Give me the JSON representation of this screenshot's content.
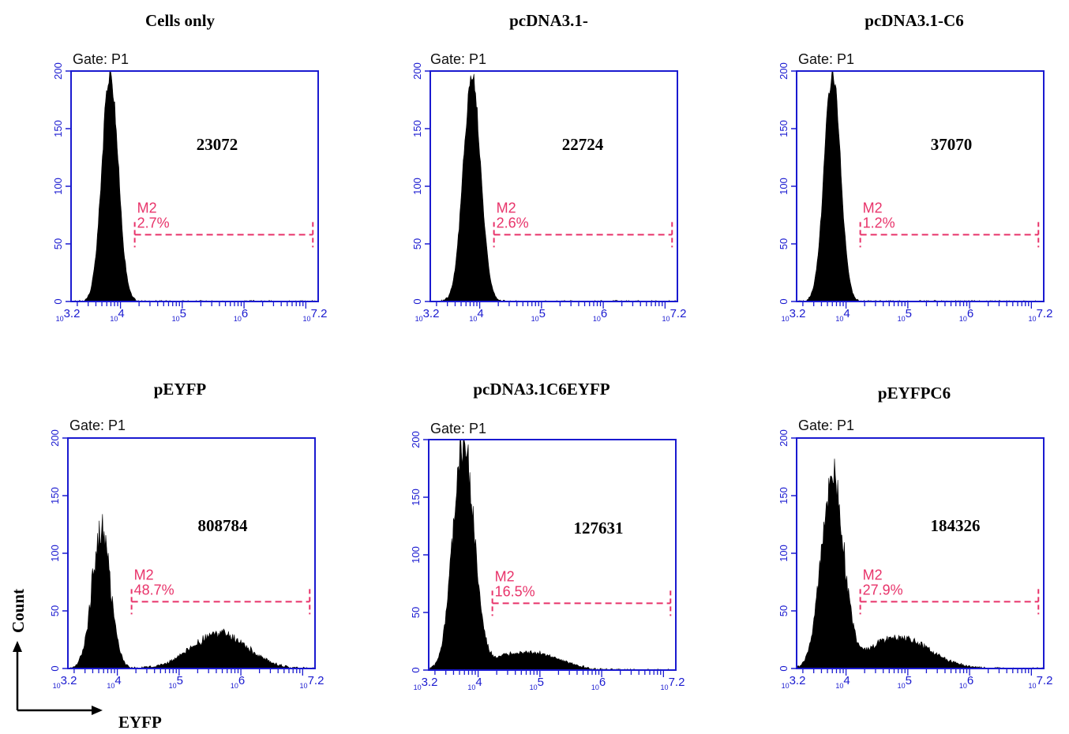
{
  "figure": {
    "y_axis_label": "Count",
    "x_axis_label": "EYFP"
  },
  "colors": {
    "frame": "#1a1ad0",
    "marker": "#e8336a",
    "histogram": "#000000"
  },
  "chart_data": [
    {
      "type": "area",
      "title": "Cells only",
      "gate_label": "Gate: P1",
      "value_label": "23072",
      "marker": {
        "name": "M2",
        "percent": "2.7%",
        "x_start": 17000,
        "x_end": 13000000,
        "y_level": 58
      },
      "x_scale": "log",
      "xlim": [
        1585,
        15850000
      ],
      "ylim": [
        0,
        200
      ],
      "y_ticks": [
        "0",
        "50",
        "100",
        "150",
        "200"
      ],
      "x_ticks": [
        {
          "base": "10",
          "exp": "3.2"
        },
        {
          "base": "10",
          "exp": "4"
        },
        {
          "base": "10",
          "exp": "5"
        },
        {
          "base": "10",
          "exp": "6"
        },
        {
          "base": "10",
          "exp": "7.2"
        }
      ],
      "series": [
        {
          "peaks": [
            {
              "x": 6800,
              "height": 200,
              "width": 0.13
            }
          ],
          "noise": 0.05
        }
      ]
    },
    {
      "type": "area",
      "title": "pcDNA3.1-",
      "gate_label": "Gate: P1",
      "value_label": "22724",
      "marker": {
        "name": "M2",
        "percent": "2.6%",
        "x_start": 17000,
        "x_end": 13000000,
        "y_level": 58
      },
      "x_scale": "log",
      "xlim": [
        1585,
        15850000
      ],
      "ylim": [
        0,
        200
      ],
      "y_ticks": [
        "0",
        "50",
        "100",
        "150",
        "200"
      ],
      "x_ticks": [
        {
          "base": "10",
          "exp": "3.2"
        },
        {
          "base": "10",
          "exp": "4"
        },
        {
          "base": "10",
          "exp": "5"
        },
        {
          "base": "10",
          "exp": "6"
        },
        {
          "base": "10",
          "exp": "7.2"
        }
      ],
      "series": [
        {
          "peaks": [
            {
              "x": 7500,
              "height": 196,
              "width": 0.14
            }
          ],
          "noise": 0.05
        }
      ]
    },
    {
      "type": "area",
      "title": "pcDNA3.1-C6",
      "gate_label": "Gate: P1",
      "value_label": "37070",
      "marker": {
        "name": "M2",
        "percent": "1.2%",
        "x_start": 17000,
        "x_end": 13000000,
        "y_level": 58
      },
      "x_scale": "log",
      "xlim": [
        1585,
        15850000
      ],
      "ylim": [
        0,
        200
      ],
      "y_ticks": [
        "0",
        "50",
        "100",
        "150",
        "200"
      ],
      "x_ticks": [
        {
          "base": "10",
          "exp": "3.2"
        },
        {
          "base": "10",
          "exp": "4"
        },
        {
          "base": "10",
          "exp": "5"
        },
        {
          "base": "10",
          "exp": "6"
        },
        {
          "base": "10",
          "exp": "7.2"
        }
      ],
      "series": [
        {
          "peaks": [
            {
              "x": 6000,
              "height": 200,
              "width": 0.13
            }
          ],
          "noise": 0.05
        }
      ]
    },
    {
      "type": "area",
      "title": "pEYFP",
      "gate_label": "Gate: P1",
      "value_label": "808784",
      "marker": {
        "name": "M2",
        "percent": "48.7%",
        "x_start": 17000,
        "x_end": 13000000,
        "y_level": 58
      },
      "x_scale": "log",
      "xlim": [
        1585,
        15850000
      ],
      "ylim": [
        0,
        200
      ],
      "y_ticks": [
        "0",
        "50",
        "100",
        "150",
        "200"
      ],
      "x_ticks": [
        {
          "base": "10",
          "exp": "3.2"
        },
        {
          "base": "10",
          "exp": "4"
        },
        {
          "base": "10",
          "exp": "5"
        },
        {
          "base": "10",
          "exp": "6"
        },
        {
          "base": "10",
          "exp": "7.2"
        }
      ],
      "series": [
        {
          "peaks": [
            {
              "x": 5500,
              "height": 120,
              "width": 0.15
            },
            {
              "x": 450000,
              "height": 30,
              "width": 0.45
            }
          ],
          "noise": 0.14
        }
      ]
    },
    {
      "type": "area",
      "title": "pcDNA3.1C6EYFP",
      "gate_label": "Gate: P1",
      "value_label": "127631",
      "marker": {
        "name": "M2",
        "percent": "16.5%",
        "x_start": 17000,
        "x_end": 13000000,
        "y_level": 58
      },
      "x_scale": "log",
      "xlim": [
        1585,
        15850000
      ],
      "ylim": [
        0,
        200
      ],
      "y_ticks": [
        "0",
        "50",
        "100",
        "150",
        "200"
      ],
      "x_ticks": [
        {
          "base": "10",
          "exp": "3.2"
        },
        {
          "base": "10",
          "exp": "4"
        },
        {
          "base": "10",
          "exp": "5"
        },
        {
          "base": "10",
          "exp": "6"
        },
        {
          "base": "10",
          "exp": "7.2"
        }
      ],
      "series": [
        {
          "peaks": [
            {
              "x": 5800,
              "height": 195,
              "width": 0.17
            },
            {
              "x": 60000,
              "height": 16,
              "width": 0.5
            }
          ],
          "noise": 0.1
        }
      ]
    },
    {
      "type": "area",
      "title": "pEYFPC6",
      "gate_label": "Gate: P1",
      "value_label": "184326",
      "marker": {
        "name": "M2",
        "percent": "27.9%",
        "x_start": 17000,
        "x_end": 13000000,
        "y_level": 58
      },
      "x_scale": "log",
      "xlim": [
        1585,
        15850000
      ],
      "ylim": [
        0,
        200
      ],
      "y_ticks": [
        "0",
        "50",
        "100",
        "150",
        "200"
      ],
      "x_ticks": [
        {
          "base": "10",
          "exp": "3.2"
        },
        {
          "base": "10",
          "exp": "4"
        },
        {
          "base": "10",
          "exp": "5"
        },
        {
          "base": "10",
          "exp": "6"
        },
        {
          "base": "10",
          "exp": "7.2"
        }
      ],
      "series": [
        {
          "peaks": [
            {
              "x": 6000,
              "height": 165,
              "width": 0.18
            },
            {
              "x": 70000,
              "height": 27,
              "width": 0.5
            }
          ],
          "noise": 0.12
        }
      ]
    }
  ]
}
